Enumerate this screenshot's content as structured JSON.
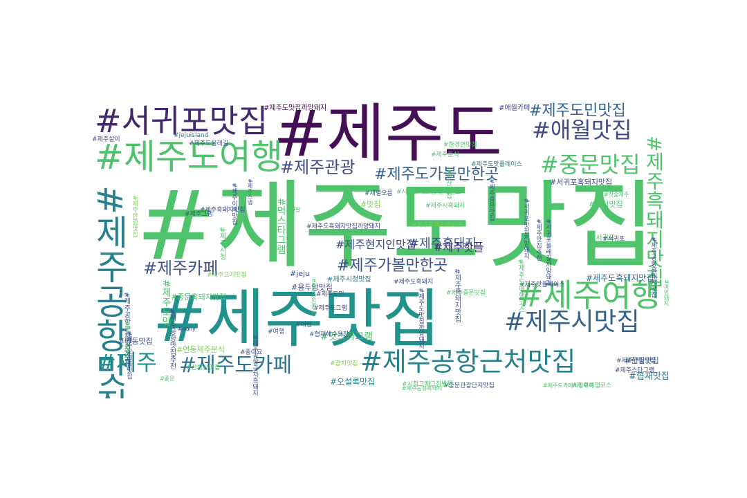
{
  "palette": {
    "background": "#ffffff",
    "scheme": "viridis"
  },
  "words": [
    {
      "text": "#제주도맛집",
      "color": "#4ec36b",
      "vertical": false
    },
    {
      "text": "#제주도",
      "color": "#440f54",
      "vertical": false
    },
    {
      "text": "#제주맛집",
      "color": "#21938c",
      "vertical": false
    },
    {
      "text": "#서귀포맛집",
      "color": "#42286e",
      "vertical": false
    },
    {
      "text": "#제주도여행",
      "color": "#4ec36b",
      "vertical": false
    },
    {
      "text": "#제주여행",
      "color": "#4ec36b",
      "vertical": false
    },
    {
      "text": "#제주공항근처맛집",
      "color": "#27808e",
      "vertical": false
    },
    {
      "text": "#제주시맛집",
      "color": "#33628d",
      "vertical": false
    },
    {
      "text": "#애월맛집",
      "color": "#3e4b89",
      "vertical": false
    },
    {
      "text": "#중문맛집",
      "color": "#4ec36b",
      "vertical": false
    },
    {
      "text": "#제주공항맛집",
      "color": "#27808e",
      "vertical": true
    },
    {
      "text": "#제주흑돼지맛집",
      "color": "#4ec36b",
      "vertical": true
    },
    {
      "text": "#제주도카페",
      "color": "#2c728e",
      "vertical": false
    },
    {
      "text": "#제주",
      "color": "#21908c",
      "vertical": false
    },
    {
      "text": "#제주도민맛집",
      "color": "#33628d",
      "vertical": false
    },
    {
      "text": "#제주관광",
      "color": "#3e4a89",
      "vertical": false
    },
    {
      "text": "#제주도가볼만한곳",
      "color": "#355f8d",
      "vertical": false
    },
    {
      "text": "#제주가볼만한곳",
      "color": "#3b528b",
      "vertical": false
    },
    {
      "text": "#제주카페",
      "color": "#3b518b",
      "vertical": false
    },
    {
      "text": "#제주흑돼지",
      "color": "#3b528b",
      "vertical": false
    },
    {
      "text": "#제주현지인맛집",
      "color": "#3e4a89",
      "vertical": false
    },
    {
      "text": "#제주핫플",
      "color": "#46327e",
      "vertical": false
    },
    {
      "text": "#제주도맛집까망돼지",
      "color": "#440154",
      "vertical": false
    },
    {
      "text": "#서귀포흑돼지맛집",
      "color": "#3e4989",
      "vertical": false
    },
    {
      "text": "#제주도흑돼지맛집",
      "color": "#31688e",
      "vertical": false
    },
    {
      "text": "#중문흑돼지맛집",
      "color": "#4ec36b",
      "vertical": false
    },
    {
      "text": "#연동맛집",
      "color": "#3b528b",
      "vertical": false
    },
    {
      "text": "#연동제주분식",
      "color": "#7ad151",
      "vertical": false
    },
    {
      "text": "#협재맛집",
      "color": "#2a788e",
      "vertical": false
    },
    {
      "text": "#한림맛집",
      "color": "#3b528b",
      "vertical": false
    },
    {
      "text": "#오설록맛집",
      "color": "#27808e",
      "vertical": false
    },
    {
      "text": "#맛스타그램",
      "color": "#4ec36b",
      "vertical": false
    },
    {
      "text": "#용두암맛집",
      "color": "#414487",
      "vertical": false
    },
    {
      "text": "#함덕맛집",
      "color": "#4ec36b",
      "vertical": false
    },
    {
      "text": "#맛집",
      "color": "#7ad151",
      "vertical": false
    },
    {
      "text": "#jeju",
      "color": "#3b528b",
      "vertical": false
    },
    {
      "text": "#제주시청맛집",
      "color": "#2a788e",
      "vertical": false
    },
    {
      "text": "#서귀포",
      "color": "#4ec36b",
      "vertical": false
    },
    {
      "text": "#애월카페",
      "color": "#414487",
      "vertical": false
    },
    {
      "text": "#한경면맛집",
      "color": "#4ec36b",
      "vertical": false
    },
    {
      "text": "#제주살이",
      "color": "#414487",
      "vertical": false
    },
    {
      "text": "#jejuisland",
      "color": "#2a788e",
      "vertical": false
    },
    {
      "text": "#제주도올레길",
      "color": "#3b528b",
      "vertical": false
    },
    {
      "text": "#제주흑돼지맛집",
      "color": "#3e4989",
      "vertical": false
    },
    {
      "text": "#제주시흑돼지",
      "color": "#4ec36b",
      "vertical": false
    },
    {
      "text": "#제주도흑돼지맛집까망돼지",
      "color": "#3e4989",
      "vertical": false
    },
    {
      "text": "#제주도맛플레이스",
      "color": "#2c728e",
      "vertical": false
    },
    {
      "text": "#제주도민",
      "color": "#3b528b",
      "vertical": false
    },
    {
      "text": "#제주도그램",
      "color": "#414487",
      "vertical": false
    },
    {
      "text": "#제주고기맛집",
      "color": "#7ad151",
      "vertical": false
    },
    {
      "text": "#제주맛플레이스",
      "color": "#3e4989",
      "vertical": false
    },
    {
      "text": "#제주연동맛집",
      "color": "#3b528b",
      "vertical": false
    },
    {
      "text": "#제주스타그램",
      "color": "#414487",
      "vertical": false
    },
    {
      "text": "#중문관광단지맛집",
      "color": "#3b528b",
      "vertical": false
    },
    {
      "text": "#제주여행코스",
      "color": "#4ec36b",
      "vertical": false
    },
    {
      "text": "#시청그때그집방문",
      "color": "#4ec36b",
      "vertical": false
    },
    {
      "text": "#제주공항흑돼지",
      "color": "#4ec36b",
      "vertical": false
    },
    {
      "text": "#산방산맛집",
      "color": "#4ec36b",
      "vertical": false
    },
    {
      "text": "#협재해수욕장",
      "color": "#3b528b",
      "vertical": false
    },
    {
      "text": "#여행",
      "color": "#3b528b",
      "vertical": false
    },
    {
      "text": "#애월",
      "color": "#3b528b",
      "vertical": false
    },
    {
      "text": "#광치맛집",
      "color": "#7ad151",
      "vertical": false
    },
    {
      "text": "#좋아요",
      "color": "#3b528b",
      "vertical": false
    },
    {
      "text": "#daily",
      "color": "#414487",
      "vertical": false
    },
    {
      "text": "#새별오름",
      "color": "#3b528b",
      "vertical": false
    },
    {
      "text": "#시청그때그집 전화번호",
      "color": "#4ec36b",
      "vertical": false
    },
    {
      "text": "#제주그램",
      "color": "#3b528b",
      "vertical": false
    },
    {
      "text": "#전팔",
      "color": "#4ec36b",
      "vertical": false
    },
    {
      "text": "#제주도카페까망돼지",
      "color": "#4ec36b",
      "vertical": false
    },
    {
      "text": "#첫술제주",
      "color": "#4ec36b",
      "vertical": false
    },
    {
      "text": "#서귀포",
      "color": "#3b528b",
      "vertical": false
    },
    {
      "text": "#제주분식",
      "color": "#4ec36b",
      "vertical": false
    },
    {
      "text": "#제주도흑돼지",
      "color": "#3b528b",
      "vertical": false
    },
    {
      "text": "#중문",
      "color": "#4ec36b",
      "vertical": false
    },
    {
      "text": "#제주흑돼지바베큐",
      "color": "#7ad151",
      "vertical": false
    },
    {
      "text": "#제주중문맛집",
      "color": "#4ec36b",
      "vertical": false
    },
    {
      "text": "#먹스타그램",
      "color": "#4ec36b",
      "vertical": true
    },
    {
      "text": "#제주도맛",
      "color": "#4ec36b",
      "vertical": true
    },
    {
      "text": "#제주도여행코스",
      "color": "#4ec36b",
      "vertical": true
    },
    {
      "text": "#서귀포맛집까망돼지",
      "color": "#3b528b",
      "vertical": true
    },
    {
      "text": "#제주맛집추천",
      "color": "#3b528b",
      "vertical": true
    },
    {
      "text": "#서귀포올레길까망돼지",
      "color": "#3b528b",
      "vertical": true
    },
    {
      "text": "#제주공항흑돼지맛집",
      "color": "#3b528b",
      "vertical": true
    },
    {
      "text": "#제주도맛집까망돼지",
      "color": "#414487",
      "vertical": true
    },
    {
      "text": "#제주공항근처흑돼지",
      "color": "#3b528b",
      "vertical": true
    },
    {
      "text": "#성산맛집",
      "color": "#4ec36b",
      "vertical": true
    },
    {
      "text": "#제주중문맛집",
      "color": "#3b528b",
      "vertical": true
    },
    {
      "text": "#제주이색맛집",
      "color": "#3b528b",
      "vertical": true
    },
    {
      "text": "#제주시청",
      "color": "#4ec36b",
      "vertical": true
    },
    {
      "text": "#제주공항근처맛집추천",
      "color": "#3b528b",
      "vertical": true
    },
    {
      "text": "#제주오설록맛집",
      "color": "#3b528b",
      "vertical": true
    },
    {
      "text": "#까망돼지",
      "color": "#4ec36b",
      "vertical": true
    },
    {
      "text": "#제주공항맛집추천",
      "color": "#3b528b",
      "vertical": true
    },
    {
      "text": "#제주한림맛집",
      "color": "#7ad151",
      "vertical": true
    },
    {
      "text": "#제주도흑돼지",
      "color": "#4ec36b",
      "vertical": true
    },
    {
      "text": "#제주흑돼지맛집",
      "color": "#3b528b",
      "vertical": true
    },
    {
      "text": "#중문맛집추천",
      "color": "#4ec36b",
      "vertical": true
    },
    {
      "text": "#제주스냅",
      "color": "#3b528b",
      "vertical": true
    },
    {
      "text": "#제주도흑돼지",
      "color": "#3b528b",
      "vertical": true
    }
  ]
}
